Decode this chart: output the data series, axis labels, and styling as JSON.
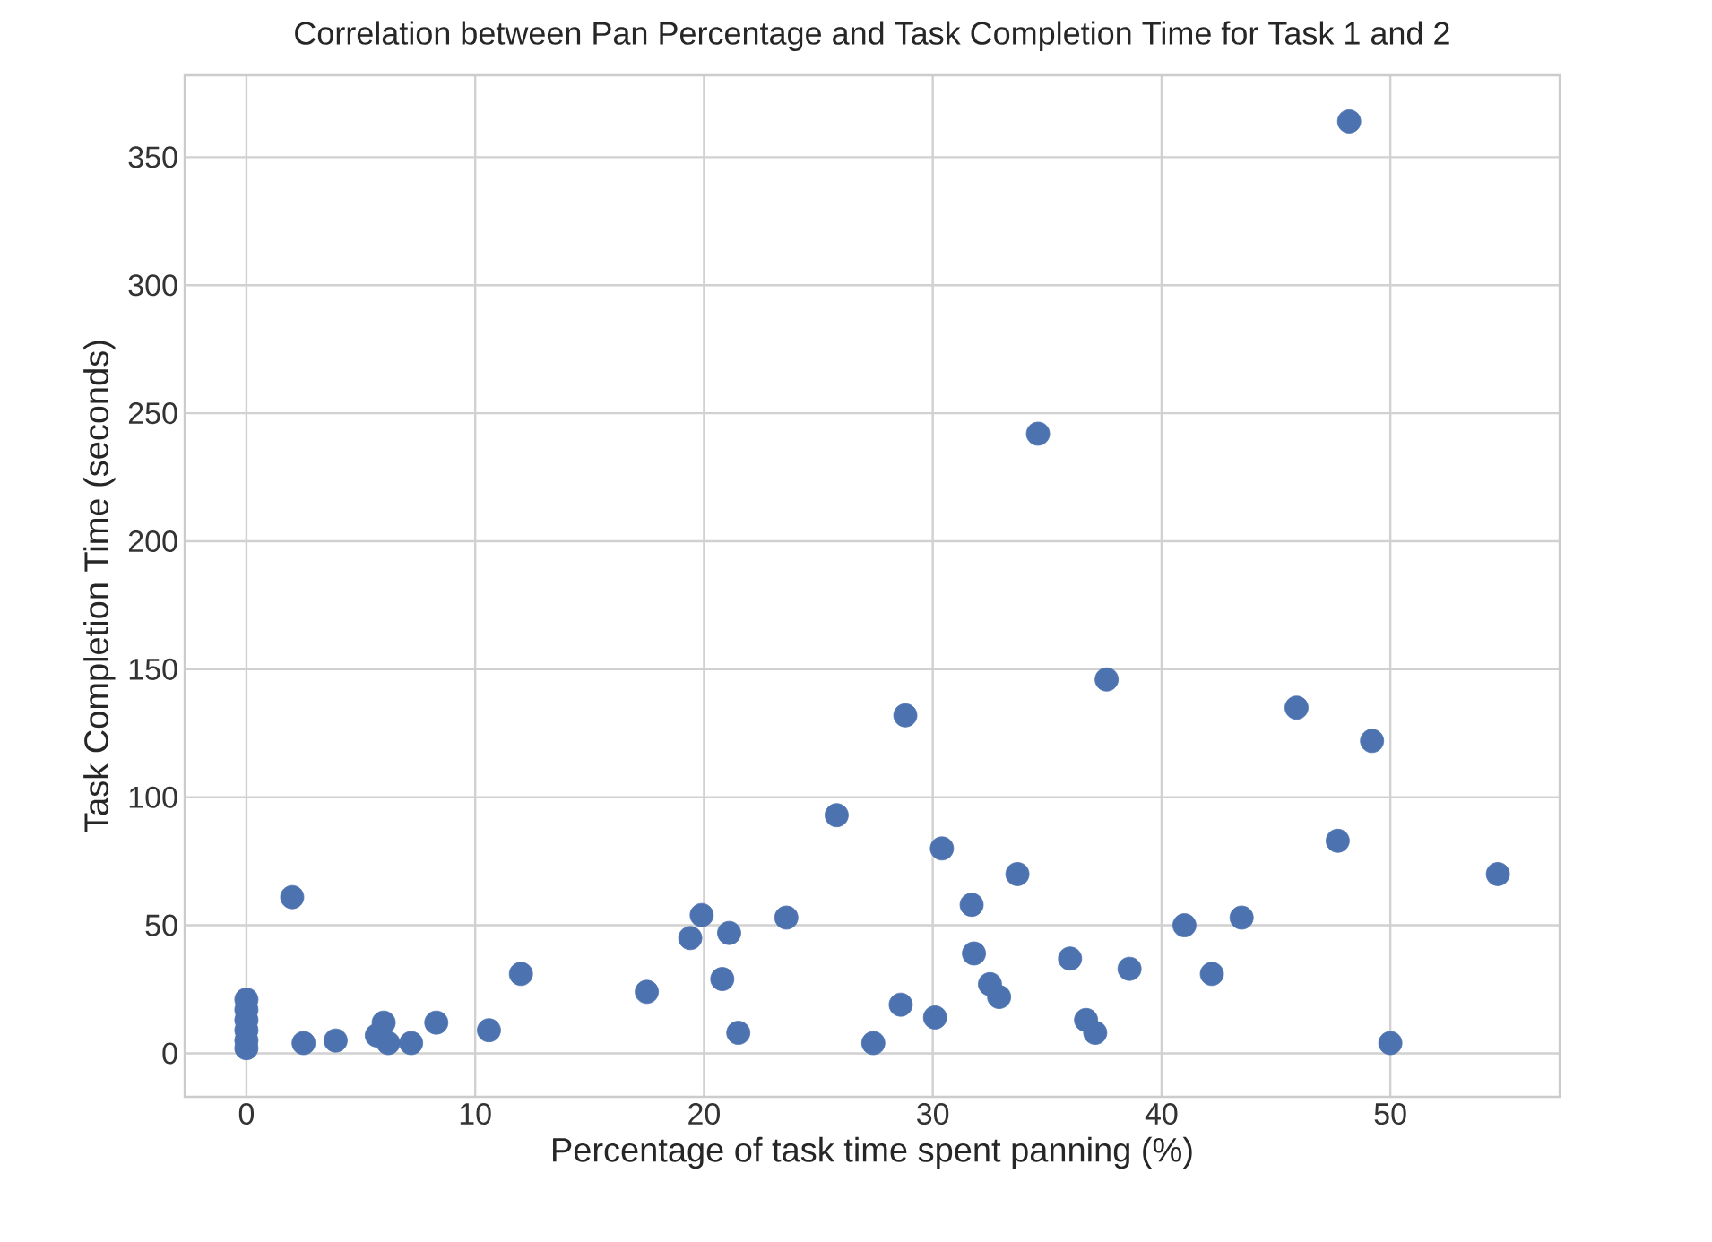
{
  "chart_data": {
    "type": "scatter",
    "title": "Correlation between Pan Percentage and Task Completion Time for Task 1 and 2",
    "xlabel": "Percentage of task time spent panning (%)",
    "ylabel": "Task Completion Time (seconds)",
    "x": [
      0,
      0,
      0,
      0,
      0,
      0,
      2.0,
      2.5,
      3.9,
      5.7,
      6.0,
      6.2,
      7.2,
      8.3,
      10.6,
      12,
      17.5,
      19.4,
      19.9,
      20.8,
      21.1,
      21.5,
      23.6,
      25.8,
      27.4,
      28.6,
      28.8,
      30.1,
      30.4,
      31.7,
      31.8,
      32.5,
      32.9,
      33.7,
      34.6,
      36,
      36.7,
      37.1,
      37.6,
      38.6,
      41,
      42.2,
      43.5,
      45.9,
      47.7,
      48.2,
      49.2,
      50,
      54.7
    ],
    "values": [
      2,
      5,
      9,
      13,
      17,
      21,
      61,
      4,
      5,
      7,
      12,
      4,
      4,
      12,
      9,
      31,
      24,
      45,
      54,
      29,
      47,
      8,
      53,
      93,
      4,
      19,
      132,
      14,
      80,
      58,
      39,
      27,
      22,
      70,
      242,
      37,
      13,
      8,
      146,
      33,
      50,
      31,
      53,
      135,
      83,
      364,
      122,
      4,
      70
    ],
    "color": "#4c72b0",
    "marker": "circle",
    "xlim": [
      -2.7,
      57.4
    ],
    "ylim": [
      -17,
      382
    ],
    "xticks": [
      0,
      10,
      20,
      30,
      40,
      50
    ],
    "yticks": [
      0,
      50,
      100,
      150,
      200,
      250,
      300,
      350
    ],
    "grid": true
  }
}
